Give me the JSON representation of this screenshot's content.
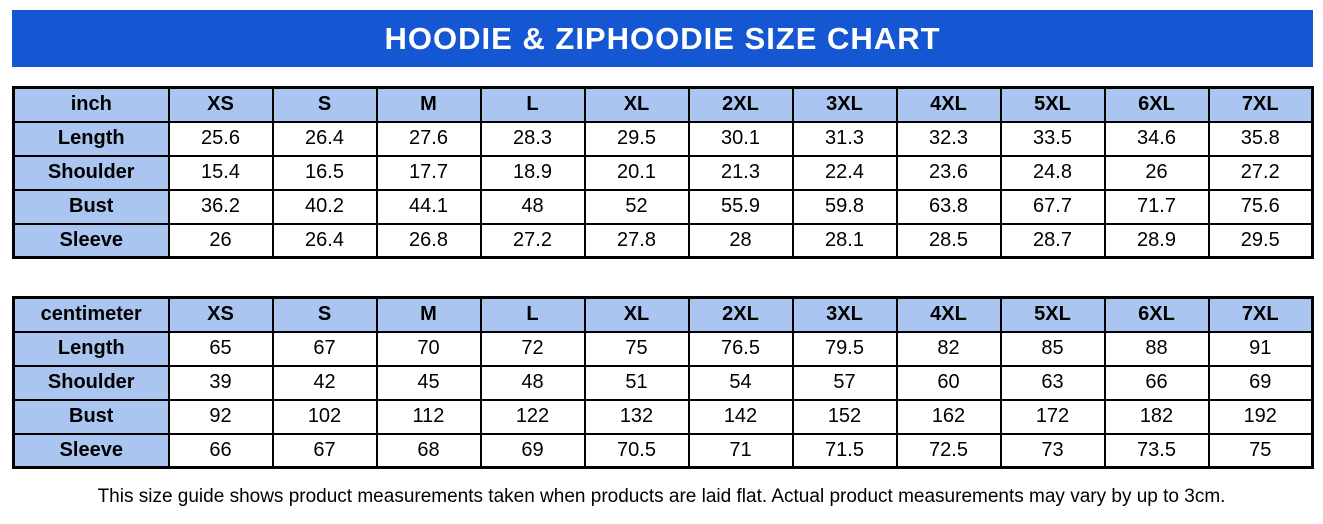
{
  "banner": {
    "title": "HOODIE & ZIPHOODIE SIZE CHART"
  },
  "colors": {
    "banner_bg": "#1556d2",
    "banner_text": "#ffffff",
    "header_cell_bg": "#aac6f0",
    "border": "#000000",
    "cell_bg": "#ffffff",
    "text": "#000000"
  },
  "chart_data": [
    {
      "type": "table",
      "unit_label": "inch",
      "size_headers": [
        "XS",
        "S",
        "M",
        "L",
        "XL",
        "2XL",
        "3XL",
        "4XL",
        "5XL",
        "6XL",
        "7XL"
      ],
      "rows": [
        {
          "label": "Length",
          "values": [
            "25.6",
            "26.4",
            "27.6",
            "28.3",
            "29.5",
            "30.1",
            "31.3",
            "32.3",
            "33.5",
            "34.6",
            "35.8"
          ]
        },
        {
          "label": "Shoulder",
          "values": [
            "15.4",
            "16.5",
            "17.7",
            "18.9",
            "20.1",
            "21.3",
            "22.4",
            "23.6",
            "24.8",
            "26",
            "27.2"
          ]
        },
        {
          "label": "Bust",
          "values": [
            "36.2",
            "40.2",
            "44.1",
            "48",
            "52",
            "55.9",
            "59.8",
            "63.8",
            "67.7",
            "71.7",
            "75.6"
          ]
        },
        {
          "label": "Sleeve",
          "values": [
            "26",
            "26.4",
            "26.8",
            "27.2",
            "27.8",
            "28",
            "28.1",
            "28.5",
            "28.7",
            "28.9",
            "29.5"
          ]
        }
      ]
    },
    {
      "type": "table",
      "unit_label": "centimeter",
      "size_headers": [
        "XS",
        "S",
        "M",
        "L",
        "XL",
        "2XL",
        "3XL",
        "4XL",
        "5XL",
        "6XL",
        "7XL"
      ],
      "rows": [
        {
          "label": "Length",
          "values": [
            "65",
            "67",
            "70",
            "72",
            "75",
            "76.5",
            "79.5",
            "82",
            "85",
            "88",
            "91"
          ]
        },
        {
          "label": "Shoulder",
          "values": [
            "39",
            "42",
            "45",
            "48",
            "51",
            "54",
            "57",
            "60",
            "63",
            "66",
            "69"
          ]
        },
        {
          "label": "Bust",
          "values": [
            "92",
            "102",
            "112",
            "122",
            "132",
            "142",
            "152",
            "162",
            "172",
            "182",
            "192"
          ]
        },
        {
          "label": "Sleeve",
          "values": [
            "66",
            "67",
            "68",
            "69",
            "70.5",
            "71",
            "71.5",
            "72.5",
            "73",
            "73.5",
            "75"
          ]
        }
      ]
    }
  ],
  "footnote": "This size guide shows product measurements taken when products are laid flat. Actual product measurements may vary by up to 3cm."
}
